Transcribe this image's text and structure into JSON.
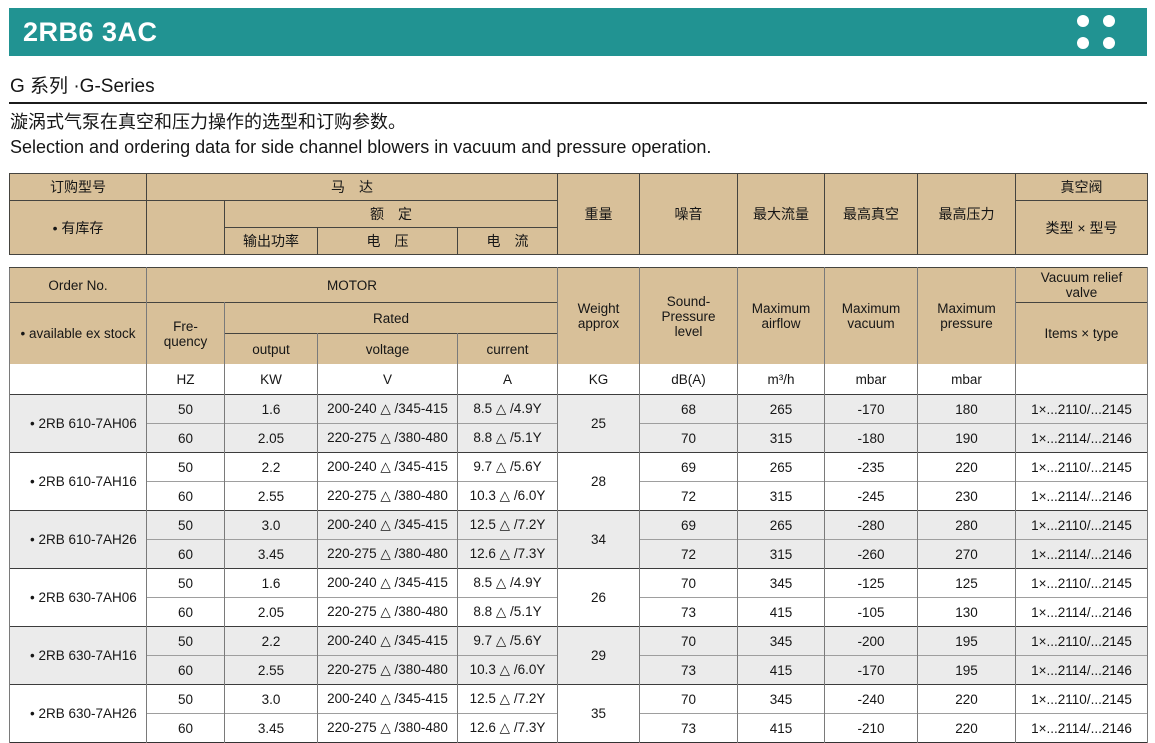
{
  "page": {
    "title": "2RB6 3AC",
    "series_heading": "G 系列 ·G-Series",
    "description_zh": "漩涡式气泵在真空和压力操作的选型和订购参数。",
    "description_en": "Selection and ordering data for side channel blowers in vacuum and pressure operation."
  },
  "colors": {
    "accent_teal": "#219392",
    "header_tan": "#d8c099",
    "shaded_row": "#ebebeb"
  },
  "icons": {
    "titlebar_icon": "grid-dots-icon"
  },
  "table": {
    "header_zh": {
      "order": "订购型号",
      "stock": "• 有库存",
      "motor": "马　达",
      "rated": "额　定",
      "output": "输出功率",
      "voltage": "电　压",
      "current": "电　流",
      "weight": "重量",
      "sound": "噪音",
      "airflow": "最大流量",
      "vacuum": "最高真空",
      "pressure": "最高压力",
      "valve": "真空阀",
      "valve_items": "类型 × 型号"
    },
    "header_en": {
      "order": "Order No.",
      "stock": "• available ex stock",
      "freq": "Fre-quency",
      "motor": "MOTOR",
      "rated": "Rated",
      "output": "output",
      "voltage": "voltage",
      "current": "current",
      "weight": "Weight approx",
      "sound": "Sound-Pressure level",
      "airflow": "Maximum airflow",
      "vacuum": "Maximum vacuum",
      "pressure": "Maximum pressure",
      "valve": "Vacuum relief valve",
      "valve_items": "Items × type"
    },
    "units": {
      "freq": "HZ",
      "output": "KW",
      "voltage": "V",
      "current": "A",
      "weight": "KG",
      "sound": "dB(A)",
      "airflow": "m³/h",
      "vacuum": "mbar",
      "pressure": "mbar"
    },
    "groups": [
      {
        "order": "• 2RB 610-7AH06",
        "weight": "25",
        "rows": [
          {
            "freq": "50",
            "output": "1.6",
            "voltage": "200-240 △ /345-415",
            "current": "8.5 △ /4.9Y",
            "sound": "68",
            "airflow": "265",
            "vacuum": "-170",
            "pressure": "180",
            "valve": "1×...2110/...2145"
          },
          {
            "freq": "60",
            "output": "2.05",
            "voltage": "220-275 △ /380-480",
            "current": "8.8 △ /5.1Y",
            "sound": "70",
            "airflow": "315",
            "vacuum": "-180",
            "pressure": "190",
            "valve": "1×...2114/...2146"
          }
        ]
      },
      {
        "order": "• 2RB 610-7AH16",
        "weight": "28",
        "rows": [
          {
            "freq": "50",
            "output": "2.2",
            "voltage": "200-240 △ /345-415",
            "current": "9.7 △ /5.6Y",
            "sound": "69",
            "airflow": "265",
            "vacuum": "-235",
            "pressure": "220",
            "valve": "1×...2110/...2145"
          },
          {
            "freq": "60",
            "output": "2.55",
            "voltage": "220-275 △ /380-480",
            "current": "10.3 △ /6.0Y",
            "sound": "72",
            "airflow": "315",
            "vacuum": "-245",
            "pressure": "230",
            "valve": "1×...2114/...2146"
          }
        ]
      },
      {
        "order": "• 2RB 610-7AH26",
        "weight": "34",
        "rows": [
          {
            "freq": "50",
            "output": "3.0",
            "voltage": "200-240 △ /345-415",
            "current": "12.5 △ /7.2Y",
            "sound": "69",
            "airflow": "265",
            "vacuum": "-280",
            "pressure": "280",
            "valve": "1×...2110/...2145"
          },
          {
            "freq": "60",
            "output": "3.45",
            "voltage": "220-275 △ /380-480",
            "current": "12.6 △ /7.3Y",
            "sound": "72",
            "airflow": "315",
            "vacuum": "-260",
            "pressure": "270",
            "valve": "1×...2114/...2146"
          }
        ]
      },
      {
        "order": "• 2RB 630-7AH06",
        "weight": "26",
        "rows": [
          {
            "freq": "50",
            "output": "1.6",
            "voltage": "200-240 △ /345-415",
            "current": "8.5 △ /4.9Y",
            "sound": "70",
            "airflow": "345",
            "vacuum": "-125",
            "pressure": "125",
            "valve": "1×...2110/...2145"
          },
          {
            "freq": "60",
            "output": "2.05",
            "voltage": "220-275 △ /380-480",
            "current": "8.8 △ /5.1Y",
            "sound": "73",
            "airflow": "415",
            "vacuum": "-105",
            "pressure": "130",
            "valve": "1×...2114/...2146"
          }
        ]
      },
      {
        "order": "• 2RB 630-7AH16",
        "weight": "29",
        "rows": [
          {
            "freq": "50",
            "output": "2.2",
            "voltage": "200-240 △ /345-415",
            "current": "9.7 △ /5.6Y",
            "sound": "70",
            "airflow": "345",
            "vacuum": "-200",
            "pressure": "195",
            "valve": "1×...2110/...2145"
          },
          {
            "freq": "60",
            "output": "2.55",
            "voltage": "220-275 △ /380-480",
            "current": "10.3 △ /6.0Y",
            "sound": "73",
            "airflow": "415",
            "vacuum": "-170",
            "pressure": "195",
            "valve": "1×...2114/...2146"
          }
        ]
      },
      {
        "order": "• 2RB 630-7AH26",
        "weight": "35",
        "rows": [
          {
            "freq": "50",
            "output": "3.0",
            "voltage": "200-240 △ /345-415",
            "current": "12.5 △ /7.2Y",
            "sound": "70",
            "airflow": "345",
            "vacuum": "-240",
            "pressure": "220",
            "valve": "1×...2110/...2145"
          },
          {
            "freq": "60",
            "output": "3.45",
            "voltage": "220-275 △ /380-480",
            "current": "12.6 △ /7.3Y",
            "sound": "73",
            "airflow": "415",
            "vacuum": "-210",
            "pressure": "220",
            "valve": "1×...2114/...2146"
          }
        ]
      }
    ]
  }
}
